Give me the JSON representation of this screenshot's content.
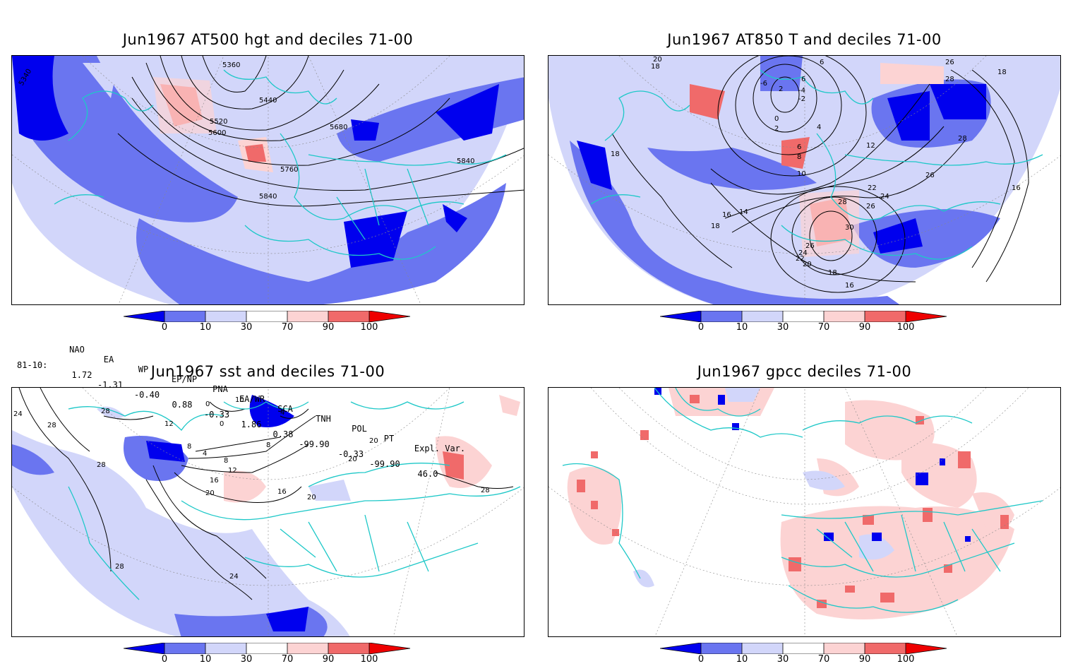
{
  "panels": [
    {
      "title": "Jun1967 AT500 hgt and deciles 71-00",
      "contour_labels": [
        "5360",
        "5440",
        "5520",
        "5600",
        "5680",
        "5760",
        "5840",
        "5840",
        "5340"
      ]
    },
    {
      "title": "Jun1967 AT850 T and deciles 71-00",
      "contour_labels": [
        "20",
        "18",
        "6",
        "6",
        "2",
        "-6",
        "-4",
        "-2",
        "0",
        "26",
        "28",
        "18",
        "2",
        "4",
        "6",
        "8",
        "10",
        "12",
        "22",
        "24",
        "26",
        "28",
        "30",
        "26",
        "24",
        "22",
        "20",
        "18",
        "16",
        "14",
        "16",
        "18",
        "28",
        "26",
        "16",
        "18"
      ]
    },
    {
      "title": "Jun1967 sst and deciles 71-00",
      "contour_labels": [
        "24",
        "28",
        "28",
        "28",
        "0",
        "10",
        "4",
        "0",
        "12",
        "8",
        "8",
        "4",
        "8",
        "12",
        "16",
        "20",
        "16",
        "20",
        "20",
        "20",
        "24",
        "28",
        "28"
      ]
    },
    {
      "title": "Jun1967 gpcc deciles 71-00",
      "contour_labels": []
    }
  ],
  "colorbar": {
    "labels": [
      "0",
      "10",
      "30",
      "70",
      "90",
      "100"
    ],
    "colors": [
      "#0000ee",
      "#6a75f0",
      "#d2d6fa",
      "#ffffff",
      "#fcd3d3",
      "#f06a6a",
      "#ee0000"
    ]
  },
  "indices": {
    "headers": [
      "NAO",
      "EA",
      "WP",
      "EP/NP",
      "PNA",
      "EA/WR",
      "SCA",
      "TNH",
      "POL",
      "PT",
      "Expl. Var."
    ],
    "row_label": "81-10:",
    "values": [
      "1.72",
      "-1.31",
      "-0.40",
      "0.88",
      "-0.33",
      "1.86",
      "0.38",
      "-99.90",
      "-0.33",
      "-99.90",
      "46.0"
    ]
  },
  "colors": {
    "coast": "#1ec8c8",
    "contour": "#000000",
    "grid": "#888888"
  }
}
